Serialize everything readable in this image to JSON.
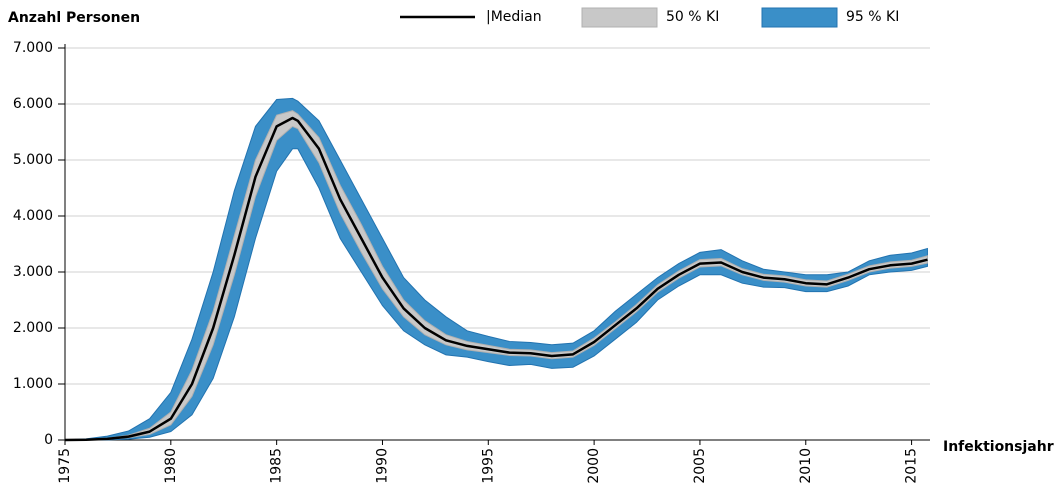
{
  "chart_data": {
    "type": "band-line",
    "y_label": "Anzahl Personen",
    "x_label": "Infektionsjahr",
    "x": [
      1975,
      1976,
      1977,
      1978,
      1979,
      1980,
      1981,
      1982,
      1983,
      1984,
      1985,
      1985.75,
      1986,
      1987,
      1988,
      1989,
      1990,
      1991,
      1992,
      1993,
      1994,
      1995,
      1996,
      1997,
      1998,
      1999,
      2000,
      2001,
      2002,
      2003,
      2004,
      2005,
      2006,
      2007,
      2008,
      2009,
      2010,
      2011,
      2012,
      2013,
      2014,
      2015,
      2015.75
    ],
    "bands": [
      {
        "name": "95 % KI",
        "color": "#3a8fc8",
        "stroke": "#2273b0",
        "lower": [
          0,
          0,
          3,
          15,
          50,
          150,
          450,
          1100,
          2200,
          3600,
          4800,
          5200,
          5200,
          4500,
          3600,
          3000,
          2400,
          1950,
          1700,
          1520,
          1480,
          1400,
          1330,
          1350,
          1280,
          1300,
          1500,
          1800,
          2100,
          2500,
          2750,
          2950,
          2950,
          2800,
          2730,
          2720,
          2650,
          2650,
          2750,
          2950,
          3000,
          3030,
          3100
        ],
        "upper": [
          0,
          20,
          70,
          160,
          380,
          850,
          1800,
          3000,
          4450,
          5600,
          6080,
          6100,
          6050,
          5700,
          5000,
          4300,
          3600,
          2900,
          2500,
          2200,
          1950,
          1850,
          1760,
          1740,
          1700,
          1730,
          1950,
          2300,
          2600,
          2900,
          3150,
          3350,
          3400,
          3200,
          3050,
          3000,
          2950,
          2950,
          3000,
          3200,
          3300,
          3340,
          3420
        ]
      },
      {
        "name": "50 % KI",
        "color": "#c8c8c8",
        "stroke": "#b0b0b0",
        "lower": [
          0,
          3,
          12,
          40,
          100,
          270,
          780,
          1700,
          2950,
          4350,
          5350,
          5600,
          5560,
          4950,
          4050,
          3350,
          2700,
          2200,
          1880,
          1700,
          1610,
          1560,
          1510,
          1500,
          1450,
          1480,
          1690,
          1990,
          2290,
          2640,
          2890,
          3090,
          3110,
          2950,
          2850,
          2820,
          2750,
          2730,
          2850,
          3000,
          3070,
          3100,
          3160
        ],
        "upper": [
          0,
          8,
          30,
          85,
          210,
          500,
          1250,
          2300,
          3650,
          5000,
          5800,
          5880,
          5820,
          5400,
          4550,
          3850,
          3100,
          2500,
          2130,
          1880,
          1760,
          1690,
          1620,
          1610,
          1560,
          1590,
          1820,
          2110,
          2420,
          2770,
          3020,
          3220,
          3240,
          3060,
          2960,
          2930,
          2860,
          2840,
          2960,
          3110,
          3180,
          3210,
          3290
        ]
      }
    ],
    "series": [
      {
        "name": "|Median",
        "color": "#000000",
        "values": [
          0,
          5,
          20,
          60,
          150,
          380,
          1000,
          2000,
          3300,
          4700,
          5600,
          5750,
          5700,
          5200,
          4300,
          3600,
          2900,
          2350,
          2000,
          1780,
          1680,
          1620,
          1560,
          1550,
          1500,
          1530,
          1750,
          2050,
          2350,
          2700,
          2950,
          3150,
          3170,
          3000,
          2900,
          2870,
          2800,
          2780,
          2900,
          3050,
          3120,
          3150,
          3220
        ]
      }
    ],
    "xlim": [
      1975,
      2015.87
    ],
    "xticks": [
      1975,
      1980,
      1985,
      1990,
      1995,
      2000,
      2005,
      2010,
      2015
    ],
    "ylim": [
      0,
      7000
    ],
    "yticks": [
      0,
      {
        "value": 1000,
        "label": "1.000"
      },
      {
        "value": 2000,
        "label": "2.000"
      },
      {
        "value": 3000,
        "label": "3.000"
      },
      {
        "value": 4000,
        "label": "4.000"
      },
      {
        "value": 5000,
        "label": "5.000"
      },
      {
        "value": 6000,
        "label": "6.000"
      },
      {
        "value": 7000,
        "label": "7.000"
      }
    ],
    "grid": true
  }
}
